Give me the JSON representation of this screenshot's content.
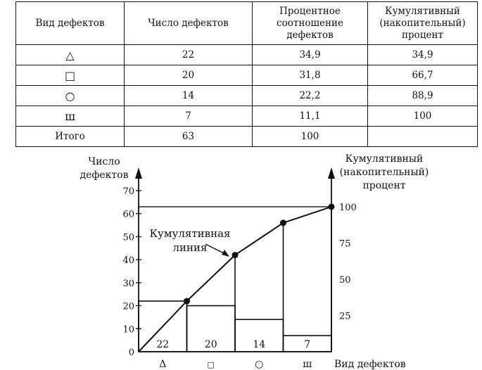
{
  "table": {
    "headers": [
      "Вид дефектов",
      "Число дефектов",
      "Процентное\nсоотношение\nдефектов",
      "Кумулятивный\n(накопительный)\nпроцент"
    ],
    "rows": [
      {
        "type": "△",
        "count": "22",
        "percent": "34,9",
        "cumulative": "34,9"
      },
      {
        "type": "□",
        "count": "20",
        "percent": "31,8",
        "cumulative": "66,7"
      },
      {
        "type": "○",
        "count": "14",
        "percent": "22,2",
        "cumulative": "88,9"
      },
      {
        "type": "ш",
        "count": "7",
        "percent": "11,1",
        "cumulative": "100"
      },
      {
        "type": "Итого",
        "count": "63",
        "percent": "100",
        "cumulative": ""
      }
    ]
  },
  "chart_data": {
    "type": "bar",
    "categories": [
      "Δ",
      "□",
      "○",
      "ш"
    ],
    "values": [
      22,
      20,
      14,
      7
    ],
    "cumulative_counts": [
      22,
      42,
      56,
      63
    ],
    "cumulative_percent": [
      34.9,
      66.7,
      88.9,
      100
    ],
    "ylabel_left": "Число\nдефектов",
    "ylabel_right": "Кумулятивный\n(накопительный)\nпроцент",
    "xlabel": "Вид дефектов",
    "left_ticks": [
      0,
      10,
      20,
      30,
      40,
      50,
      60,
      70
    ],
    "right_ticks": [
      25,
      50,
      75,
      100
    ],
    "ylim": [
      0,
      70
    ],
    "annotation": "Кумулятивная\nлиния",
    "grid": false,
    "colors": {
      "ink": "#111111",
      "background": "#ffffff"
    }
  }
}
